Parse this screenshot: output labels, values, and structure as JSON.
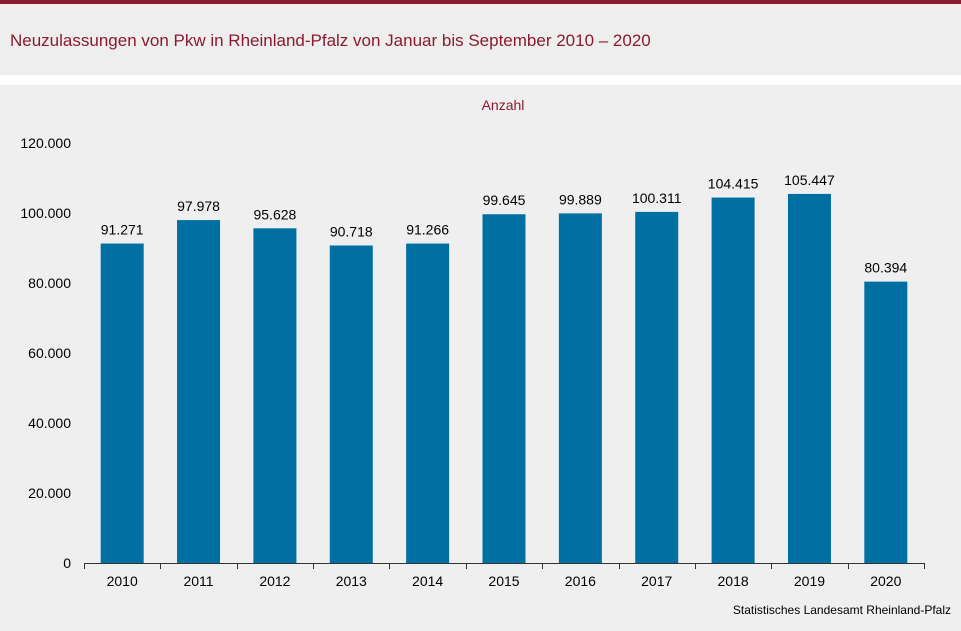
{
  "title": "Neuzulassungen von Pkw in Rheinland-Pfalz von Januar bis September 2010 – 2020",
  "source": "Statistisches Landesamt  Rheinland-Pfalz",
  "colors": {
    "accent": "#8b1a2f",
    "bar": "#0070a3",
    "background": "#efefef"
  },
  "chart_data": {
    "type": "bar",
    "unit_label": "Anzahl",
    "categories": [
      "2010",
      "2011",
      "2012",
      "2013",
      "2014",
      "2015",
      "2016",
      "2017",
      "2018",
      "2019",
      "2020"
    ],
    "values": [
      91271,
      97978,
      95628,
      90718,
      91266,
      99645,
      99889,
      100311,
      104415,
      105447,
      80394
    ],
    "value_labels": [
      "91.271",
      "97.978",
      "95.628",
      "90.718",
      "91.266",
      "99.645",
      "99.889",
      "100.311",
      "104.415",
      "105.447",
      "80.394"
    ],
    "ylim": [
      0,
      120000
    ],
    "yticks": [
      0,
      20000,
      40000,
      60000,
      80000,
      100000,
      120000
    ],
    "ytick_labels": [
      "0",
      "20.000",
      "40.000",
      "60.000",
      "80.000",
      "100.000",
      "120.000"
    ],
    "grid": false,
    "legend": "none"
  }
}
